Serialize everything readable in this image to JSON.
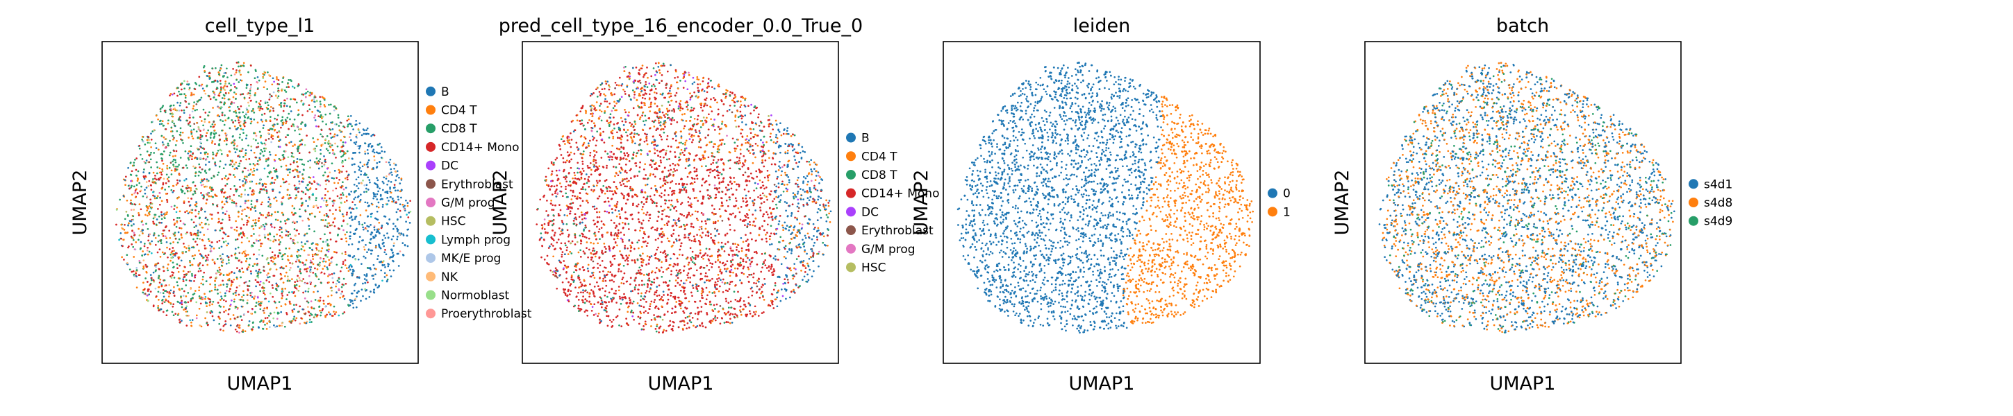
{
  "chart_data": [
    {
      "type": "scatter",
      "title": "cell_type_l1",
      "xlabel": "UMAP1",
      "ylabel": "UMAP2",
      "grid": false,
      "legend_placement": "right",
      "legend": [
        {
          "label": "B",
          "color": "#1f77b4"
        },
        {
          "label": "CD4 T",
          "color": "#ff7f0e"
        },
        {
          "label": "CD8 T",
          "color": "#279e68"
        },
        {
          "label": "CD14+ Mono",
          "color": "#d62728"
        },
        {
          "label": "DC",
          "color": "#aa40fc"
        },
        {
          "label": "Erythroblast",
          "color": "#8c564b"
        },
        {
          "label": "G/M prog",
          "color": "#e377c2"
        },
        {
          "label": "HSC",
          "color": "#b5bd61"
        },
        {
          "label": "Lymph prog",
          "color": "#17becf"
        },
        {
          "label": "MK/E prog",
          "color": "#aec7e8"
        },
        {
          "label": "NK",
          "color": "#ffbb78"
        },
        {
          "label": "Normoblast",
          "color": "#98df8a"
        },
        {
          "label": "Proerythroblast",
          "color": "#ff9896"
        }
      ]
    },
    {
      "type": "scatter",
      "title": "pred_cell_type_16_encoder_0.0_True_0",
      "xlabel": "UMAP1",
      "ylabel": "UMAP2",
      "grid": false,
      "legend_placement": "right",
      "legend": [
        {
          "label": "B",
          "color": "#1f77b4"
        },
        {
          "label": "CD4 T",
          "color": "#ff7f0e"
        },
        {
          "label": "CD8 T",
          "color": "#279e68"
        },
        {
          "label": "CD14+ Mono",
          "color": "#d62728"
        },
        {
          "label": "DC",
          "color": "#aa40fc"
        },
        {
          "label": "Erythroblast",
          "color": "#8c564b"
        },
        {
          "label": "G/M prog",
          "color": "#e377c2"
        },
        {
          "label": "HSC",
          "color": "#b5bd61"
        }
      ]
    },
    {
      "type": "scatter",
      "title": "leiden",
      "xlabel": "UMAP1",
      "ylabel": "UMAP2",
      "grid": false,
      "legend_placement": "right",
      "legend": [
        {
          "label": "0",
          "color": "#1f77b4"
        },
        {
          "label": "1",
          "color": "#ff7f0e"
        }
      ]
    },
    {
      "type": "scatter",
      "title": "batch",
      "xlabel": "UMAP1",
      "ylabel": "UMAP2",
      "grid": false,
      "legend_placement": "right",
      "legend": [
        {
          "label": "s4d1",
          "color": "#1f77b4"
        },
        {
          "label": "s4d8",
          "color": "#ff7f0e"
        },
        {
          "label": "s4d9",
          "color": "#279e68"
        }
      ]
    }
  ]
}
